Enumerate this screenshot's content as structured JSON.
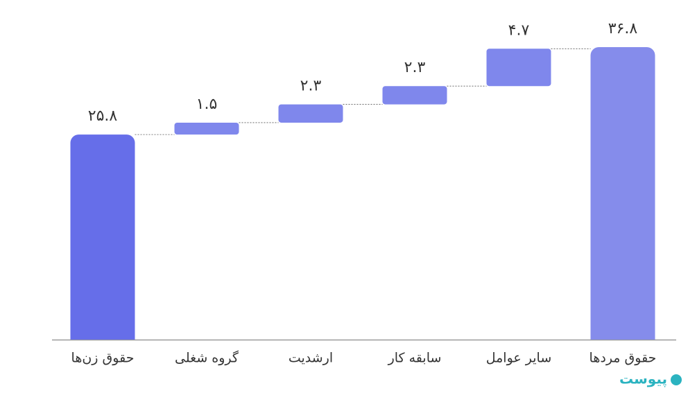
{
  "chart_data": {
    "type": "waterfall",
    "categories": [
      "حقوق زن‌ها",
      "گروه شغلی",
      "ارشدیت",
      "سابقه کار",
      "سایر عوامل",
      "حقوق مردها"
    ],
    "values": [
      25.8,
      1.5,
      2.3,
      2.3,
      4.7,
      36.8
    ],
    "value_labels": [
      "۲۵.۸",
      "۱.۵",
      "۲.۳",
      "۲.۳",
      "۴.۷",
      "۳۶.۸"
    ],
    "totals": [
      true,
      false,
      false,
      false,
      false,
      true
    ],
    "colors": [
      "#666ee9",
      "#7f87ec",
      "#7f87ec",
      "#7f87ec",
      "#7f87ec",
      "#858ceb"
    ],
    "ylim": [
      0,
      36.8
    ],
    "connectors": true
  },
  "watermark": "پیوست"
}
